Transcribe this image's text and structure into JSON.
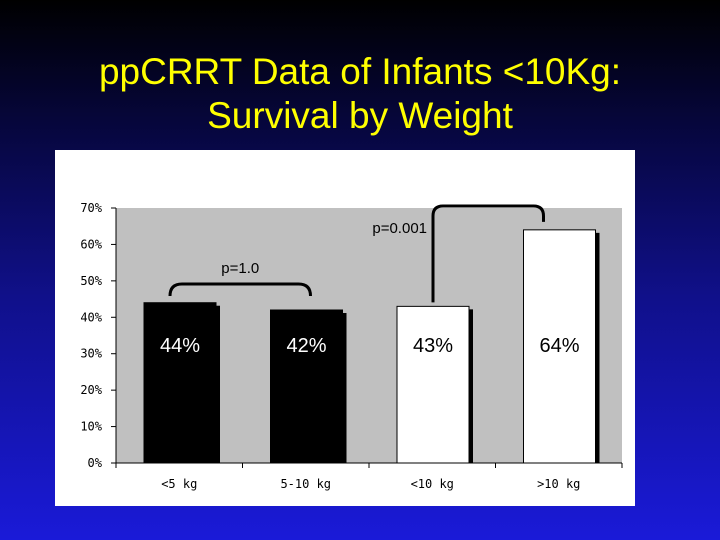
{
  "slide": {
    "title_line1": "ppCRRT Data of Infants <10Kg:",
    "title_line2": "Survival by Weight"
  },
  "chart_data": {
    "type": "bar",
    "categories": [
      "<5 kg",
      "5-10 kg",
      "<10 kg",
      ">10 kg"
    ],
    "values": [
      44,
      42,
      43,
      64
    ],
    "data_labels": [
      "44%",
      "42%",
      "43%",
      "64%"
    ],
    "bar_colors": [
      "#000000",
      "#000000",
      "#ffffff",
      "#ffffff"
    ],
    "label_colors": [
      "#ffffff",
      "#ffffff",
      "#000000",
      "#000000"
    ],
    "ylim": [
      0,
      70
    ],
    "yticks": [
      "0%",
      "10%",
      "20%",
      "30%",
      "40%",
      "50%",
      "60%",
      "70%"
    ],
    "ytick_values": [
      0,
      10,
      20,
      30,
      40,
      50,
      60,
      70
    ],
    "grid": false,
    "plot_background": "#c0c0c0",
    "annotations": [
      {
        "text": "p=1.0",
        "from": 0,
        "to": 1
      },
      {
        "text": "p=0.001",
        "from": 2,
        "to": 3
      }
    ]
  }
}
